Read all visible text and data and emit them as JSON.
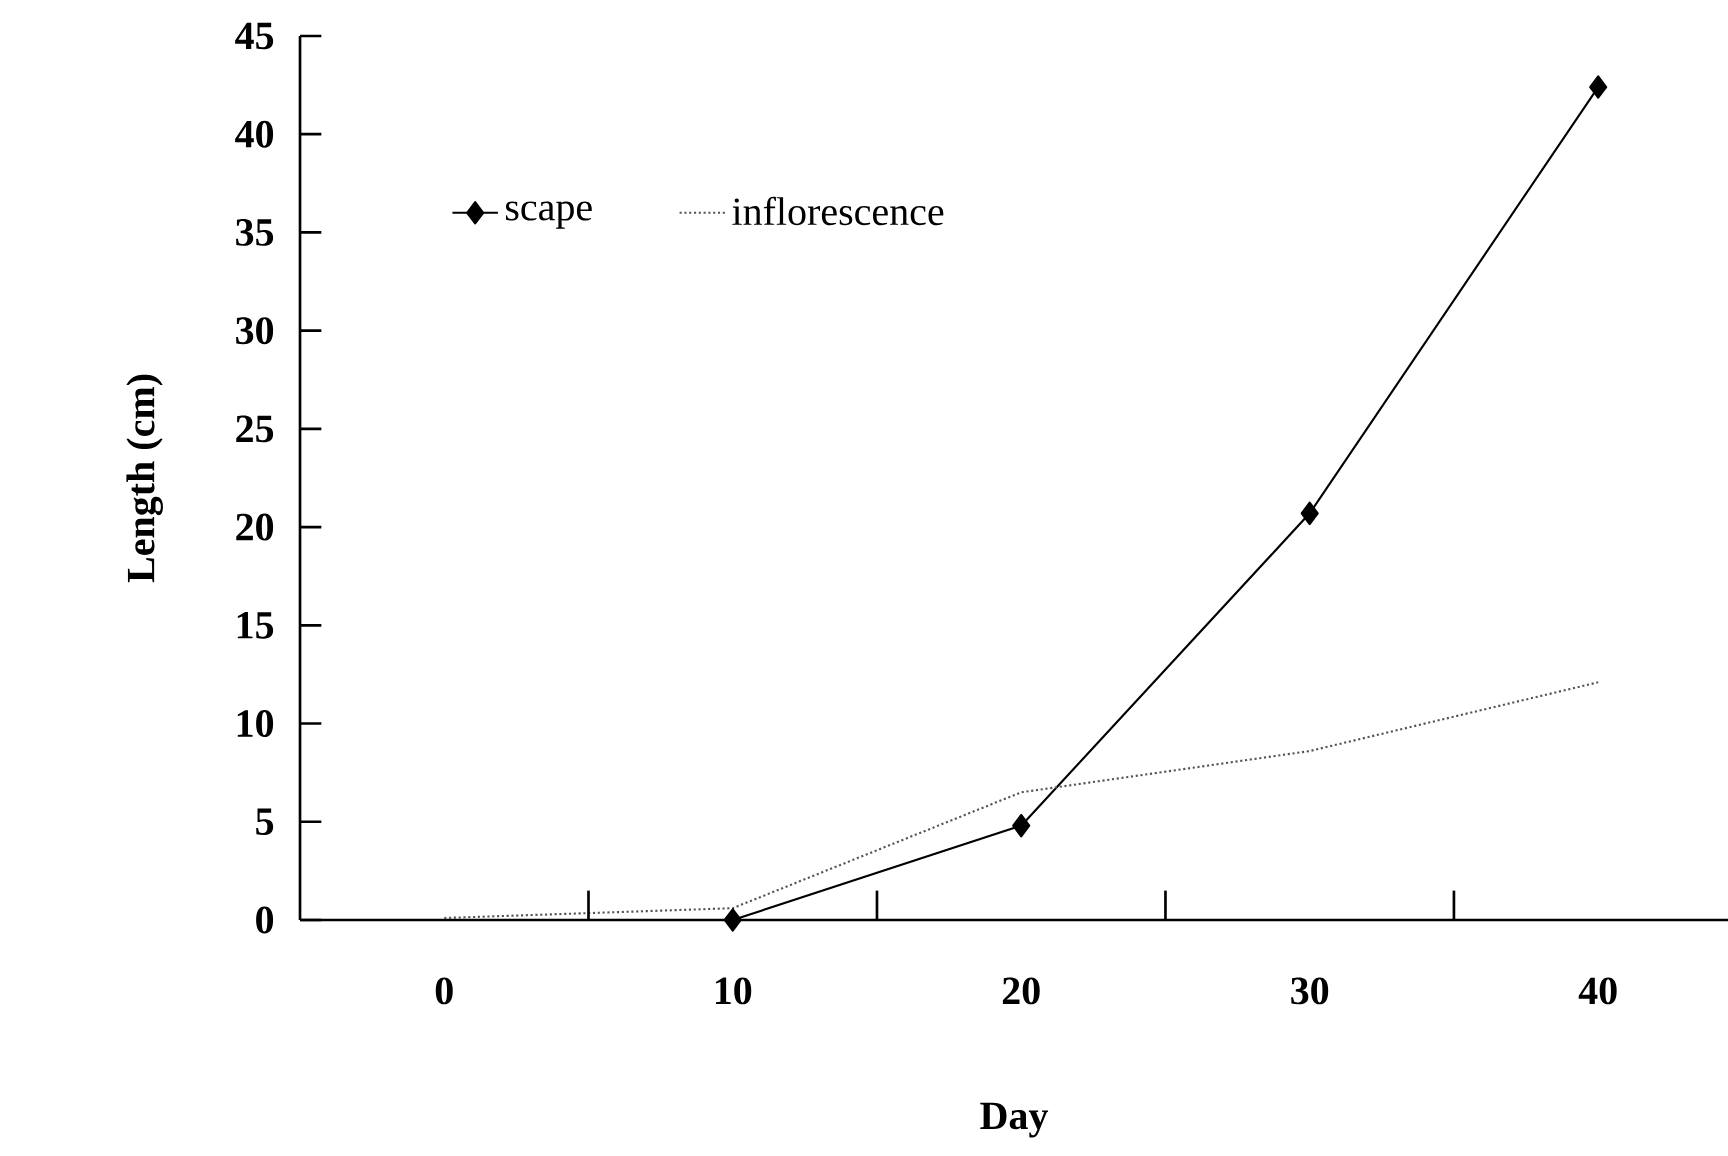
{
  "chart_data": {
    "type": "line",
    "xlabel": "Day",
    "ylabel": "Length (cm)",
    "categories": [
      "0",
      "10",
      "20",
      "30",
      "40"
    ],
    "series": [
      {
        "name": "scape",
        "color": "#000000",
        "values": [
          null,
          0,
          4.8,
          20.7,
          42.4
        ],
        "marker": "diamond",
        "line_style": "solid"
      },
      {
        "name": "inflorescence",
        "color": "#555555",
        "values": [
          0.1,
          0.6,
          6.5,
          8.6,
          12.1
        ],
        "marker": "none",
        "line_style": "dotted"
      }
    ],
    "ylim": [
      0,
      45
    ],
    "yticks": [
      0,
      5,
      10,
      15,
      20,
      25,
      30,
      35,
      40,
      45
    ],
    "grid": false,
    "legend": "top left"
  }
}
